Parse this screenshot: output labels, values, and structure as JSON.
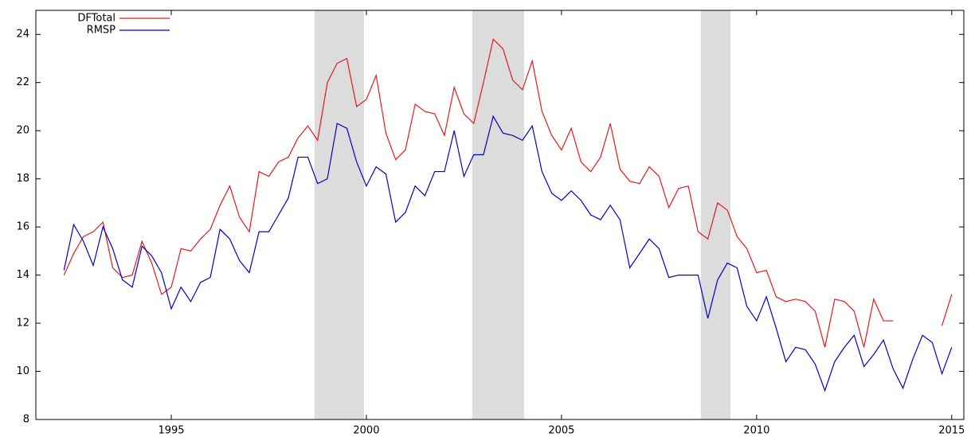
{
  "chart_data": {
    "type": "line",
    "x": [
      1992.25,
      1992.5,
      1992.75,
      1993,
      1993.25,
      1993.5,
      1993.75,
      1994,
      1994.25,
      1994.5,
      1994.75,
      1995,
      1995.25,
      1995.5,
      1995.75,
      1996,
      1996.25,
      1996.5,
      1996.75,
      1997,
      1997.25,
      1997.5,
      1997.75,
      1998,
      1998.25,
      1998.5,
      1998.75,
      1999,
      1999.25,
      1999.5,
      1999.75,
      2000,
      2000.25,
      2000.5,
      2000.75,
      2001,
      2001.25,
      2001.5,
      2001.75,
      2002,
      2002.25,
      2002.5,
      2002.75,
      2003,
      2003.25,
      2003.5,
      2003.75,
      2004,
      2004.25,
      2004.5,
      2004.75,
      2005,
      2005.25,
      2005.5,
      2005.75,
      2006,
      2006.25,
      2006.5,
      2006.75,
      2007,
      2007.25,
      2007.5,
      2007.75,
      2008,
      2008.25,
      2008.5,
      2008.75,
      2009,
      2009.25,
      2009.5,
      2009.75,
      2010,
      2010.25,
      2010.5,
      2010.75,
      2011,
      2011.25,
      2011.5,
      2011.75,
      2012,
      2012.25,
      2012.5,
      2012.75,
      2013,
      2013.25,
      2013.5,
      2013.75,
      2014,
      2014.25,
      2014.5,
      2014.75,
      2015
    ],
    "series": [
      {
        "name": "DFTotal",
        "color": "#e41a1c",
        "values": [
          14.0,
          14.9,
          15.6,
          15.8,
          16.2,
          14.3,
          13.9,
          14.0,
          15.4,
          14.5,
          13.2,
          13.5,
          15.1,
          15.0,
          15.5,
          15.9,
          16.9,
          17.7,
          16.4,
          15.8,
          18.3,
          18.1,
          18.7,
          18.9,
          19.7,
          20.2,
          19.6,
          22.0,
          22.8,
          23.0,
          21.0,
          21.3,
          22.3,
          19.9,
          18.8,
          19.2,
          21.1,
          20.8,
          20.7,
          19.8,
          21.8,
          20.7,
          20.3,
          22.0,
          23.8,
          23.4,
          22.1,
          21.7,
          22.9,
          20.8,
          19.8,
          19.2,
          20.1,
          18.7,
          18.3,
          18.9,
          20.3,
          18.4,
          17.9,
          17.8,
          18.5,
          18.1,
          16.8,
          17.6,
          17.7,
          15.8,
          15.5,
          17.0,
          16.7,
          15.6,
          15.1,
          14.1,
          14.2,
          13.1,
          12.9,
          13.0,
          12.9,
          12.5,
          11.0,
          13.0,
          12.9,
          12.5,
          11.0,
          13.0,
          12.1,
          12.1,
          null,
          null,
          null,
          null,
          11.9,
          13.2
        ]
      },
      {
        "name": "RMSP",
        "color": "#0000cc",
        "values": [
          14.2,
          16.1,
          15.4,
          14.4,
          16.0,
          15.1,
          13.8,
          13.5,
          15.2,
          14.8,
          14.1,
          12.6,
          13.5,
          12.9,
          13.7,
          13.9,
          15.9,
          15.5,
          14.6,
          14.1,
          15.8,
          15.8,
          16.5,
          17.2,
          18.9,
          18.9,
          17.8,
          18.0,
          20.3,
          20.1,
          18.7,
          17.7,
          18.5,
          18.2,
          16.2,
          16.6,
          17.7,
          17.3,
          18.3,
          18.3,
          20.0,
          18.1,
          19.0,
          19.0,
          20.6,
          19.9,
          19.8,
          19.6,
          20.2,
          18.3,
          17.4,
          17.1,
          17.5,
          17.1,
          16.5,
          16.3,
          16.9,
          16.3,
          14.3,
          14.9,
          15.5,
          15.1,
          13.9,
          14.0,
          14.0,
          14.0,
          12.2,
          13.8,
          14.5,
          14.3,
          12.7,
          12.1,
          13.1,
          11.8,
          10.4,
          11.0,
          10.9,
          10.3,
          9.2,
          10.4,
          11.0,
          11.5,
          10.2,
          10.7,
          11.3,
          10.1,
          9.3,
          10.5,
          11.5,
          11.2,
          9.9,
          11.0
        ]
      }
    ],
    "shaded": [
      [
        1998.67,
        1999.94
      ],
      [
        2002.71,
        2004.04
      ],
      [
        2008.57,
        2009.33
      ]
    ],
    "shade_color": "#dcdcdc",
    "xlim": [
      1991.53,
      2015.31
    ],
    "xticks": [
      1995,
      2000,
      2005,
      2010,
      2015
    ],
    "ylim": [
      8,
      25
    ],
    "yticks": [
      8,
      10,
      12,
      14,
      16,
      18,
      20,
      22,
      24
    ],
    "grid": false,
    "legend": "upper left"
  }
}
